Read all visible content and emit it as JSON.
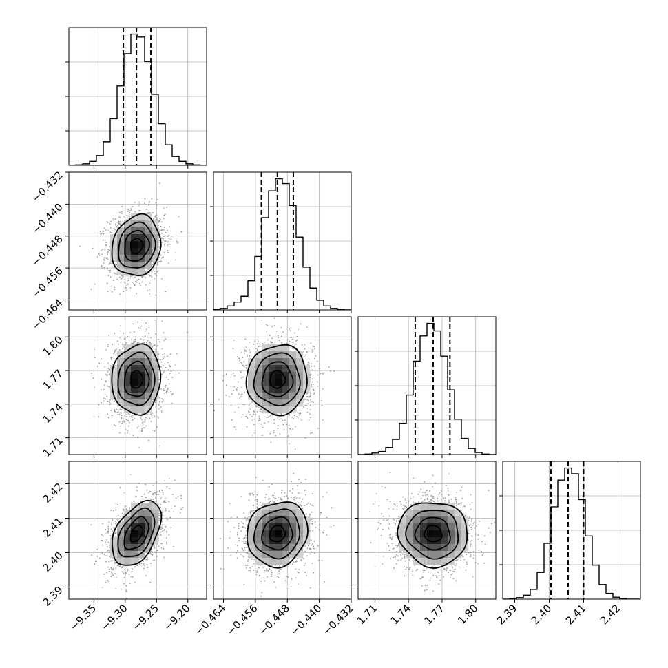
{
  "chart_data": {
    "type": "corner",
    "parameters": [
      {
        "mean": -9.282,
        "sigma": 0.0195,
        "range": [
          -9.39,
          -9.17
        ],
        "ticks": [
          -9.35,
          -9.3,
          -9.25,
          -9.2
        ],
        "tick_labels": [
          "−9.35",
          "−9.30",
          "−9.25",
          "−9.20"
        ],
        "quantiles": [
          -9.303,
          -9.282,
          -9.259
        ],
        "hist_counts": [
          0,
          1,
          3,
          8,
          20,
          48,
          95,
          162,
          228,
          268,
          262,
          212,
          145,
          85,
          42,
          18,
          8,
          3,
          1,
          0
        ]
      },
      {
        "mean": -0.4505,
        "sigma": 0.0038,
        "range": [
          -0.4665,
          -0.432
        ],
        "ticks": [
          -0.464,
          -0.456,
          -0.448,
          -0.44,
          -0.432
        ],
        "tick_labels": [
          "−0.464",
          "−0.456",
          "−0.448",
          "−0.440",
          "−0.432"
        ],
        "quantiles": [
          -0.4545,
          -0.4505,
          -0.4465
        ],
        "hist_counts": [
          1,
          3,
          8,
          16,
          28,
          60,
          110,
          190,
          245,
          270,
          260,
          215,
          150,
          88,
          45,
          20,
          8,
          3,
          1,
          0
        ]
      },
      {
        "mean": 1.762,
        "sigma": 0.0155,
        "range": [
          1.695,
          1.818
        ],
        "ticks": [
          1.71,
          1.74,
          1.77,
          1.8
        ],
        "tick_labels": [
          "1.71",
          "1.74",
          "1.77",
          "1.80"
        ],
        "quantiles": [
          1.746,
          1.762,
          1.777
        ],
        "hist_counts": [
          0,
          1,
          3,
          6,
          14,
          30,
          62,
          118,
          185,
          235,
          260,
          245,
          195,
          128,
          70,
          32,
          12,
          4,
          1,
          0
        ]
      },
      {
        "mean": 2.4055,
        "sigma": 0.0047,
        "range": [
          2.3865,
          2.4265
        ],
        "ticks": [
          2.39,
          2.4,
          2.41,
          2.42
        ],
        "tick_labels": [
          "2.39",
          "2.40",
          "2.41",
          "2.42"
        ],
        "quantiles": [
          2.4005,
          2.4055,
          2.41
        ],
        "hist_counts": [
          0,
          1,
          3,
          8,
          20,
          55,
          115,
          190,
          245,
          270,
          258,
          205,
          130,
          70,
          30,
          12,
          4,
          1,
          0,
          0
        ]
      }
    ],
    "correlations": {
      "1-0": 0.12,
      "2-0": 0.05,
      "2-1": 0.02,
      "3-0": 0.45,
      "3-1": 0.1,
      "3-2": -0.05
    },
    "contour_levels_sigma": [
      0.5,
      1.0,
      1.5,
      2.0
    ],
    "grid": true,
    "colors": {
      "line": "#000000",
      "scatter": "#9a9a9a",
      "density_dark": "#0a0a0a",
      "grid": "#b0b0b0"
    }
  }
}
